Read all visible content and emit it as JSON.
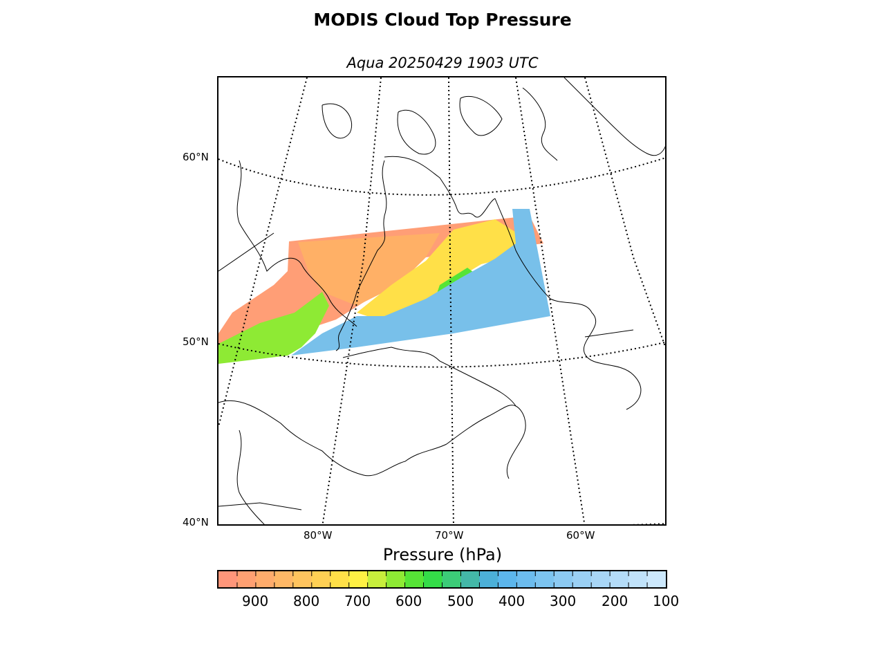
{
  "title": "MODIS Cloud Top Pressure",
  "subtitle": "Aqua 20250429 1903 UTC",
  "lat_labels": [
    "60°N",
    "50°N",
    "40°N"
  ],
  "lon_labels": [
    "80°W",
    "70°W",
    "60°W"
  ],
  "colorbar": {
    "label": "Pressure (hPa)",
    "ticks": [
      "900",
      "800",
      "700",
      "600",
      "500",
      "400",
      "300",
      "200",
      "100"
    ],
    "colors": [
      "#ff967a",
      "#ffa072",
      "#ffac6c",
      "#ffb866",
      "#ffc45e",
      "#ffd054",
      "#ffe048",
      "#fff044",
      "#c8ee3c",
      "#8eea34",
      "#56e436",
      "#34dc48",
      "#3ccc78",
      "#44b8a8",
      "#4cb0d8",
      "#5cb6ec",
      "#6cbcee",
      "#7cc4f0",
      "#8ccaf2",
      "#9ad0f4",
      "#a8d6f6",
      "#b4dcf8",
      "#c0e2fa",
      "#cce8fc"
    ]
  },
  "map_colors": {
    "low_cloud": "#ff9e76",
    "mid_low_cloud": "#ffb066",
    "mid_cloud": "#ffe048",
    "mid_high_cloud": "#8eea34",
    "high_cloud": "#78c0ea",
    "coastline": "#000000"
  }
}
